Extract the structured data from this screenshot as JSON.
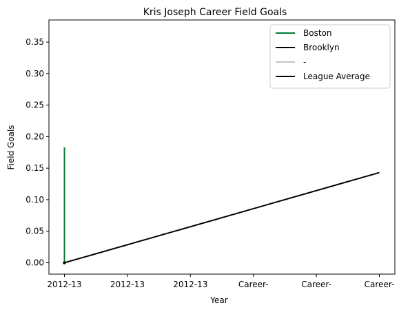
{
  "chart_data": {
    "type": "line",
    "title": "Kris Joseph Career Field Goals",
    "xlabel": "Year",
    "ylabel": "Field Goals",
    "categories": [
      "2012-13",
      "2012-13",
      "2012-13",
      "Career-",
      "Career-",
      "Career-"
    ],
    "ylim": [
      -0.018,
      0.385
    ],
    "yticks": [
      "0.00",
      "0.05",
      "0.10",
      "0.15",
      "0.20",
      "0.25",
      "0.30",
      "0.35"
    ],
    "ytick_values": [
      0,
      0.05,
      0.1,
      0.15,
      0.2,
      0.25,
      0.3,
      0.35
    ],
    "grid": false,
    "legend_position": "top-right",
    "series": [
      {
        "name": "Boston",
        "color": "#007a33",
        "points": [
          [
            0,
            0.0
          ],
          [
            0,
            0.183
          ]
        ]
      },
      {
        "name": "Brooklyn",
        "color": "#000000",
        "points": [
          [
            0,
            0.0
          ]
        ]
      },
      {
        "name": "-",
        "color": "#c4c4c4",
        "points": []
      },
      {
        "name": "League Average",
        "color": "#000000",
        "points": [
          [
            0,
            0.0
          ],
          [
            5,
            0.143
          ]
        ]
      }
    ],
    "point_markers": [
      {
        "x": 0,
        "y": 0.0,
        "color": "#000000"
      }
    ]
  }
}
